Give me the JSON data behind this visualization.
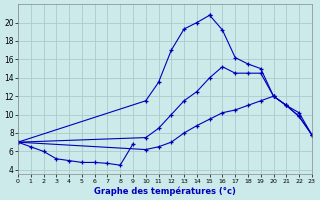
{
  "title": "Graphe des températures (°c)",
  "bg": "#cceaea",
  "grid_color": "#aacccc",
  "lc": "#0000bb",
  "xlim": [
    0,
    23
  ],
  "ylim": [
    3.5,
    22
  ],
  "yticks": [
    4,
    6,
    8,
    10,
    12,
    14,
    16,
    18,
    20
  ],
  "xticks": [
    0,
    1,
    2,
    3,
    4,
    5,
    6,
    7,
    8,
    9,
    10,
    11,
    12,
    13,
    14,
    15,
    16,
    17,
    18,
    19,
    20,
    21,
    22,
    23
  ],
  "line1_x": [
    0,
    1,
    2,
    3,
    4,
    5,
    6,
    7,
    8,
    9
  ],
  "line1_y": [
    7.0,
    6.5,
    6.0,
    5.2,
    5.0,
    4.8,
    4.8,
    4.7,
    4.5,
    6.8
  ],
  "line2_x": [
    0,
    10,
    11,
    12,
    13,
    14,
    15,
    16,
    17,
    18,
    19,
    20,
    21,
    22,
    23
  ],
  "line2_y": [
    7.0,
    6.2,
    6.5,
    7.0,
    8.0,
    8.8,
    9.5,
    10.2,
    10.5,
    11.0,
    11.5,
    12.0,
    11.0,
    10.2,
    7.8
  ],
  "line3_x": [
    0,
    10,
    11,
    12,
    13,
    14,
    15,
    16,
    17,
    18,
    19,
    20,
    21,
    22,
    23
  ],
  "line3_y": [
    7.0,
    7.5,
    8.5,
    10.0,
    11.5,
    12.5,
    14.0,
    15.2,
    14.5,
    14.5,
    14.5,
    12.0,
    11.0,
    9.8,
    7.8
  ],
  "line4_x": [
    0,
    10,
    11,
    12,
    13,
    14,
    15
  ],
  "line4_y": [
    7.0,
    11.5,
    13.5,
    17.0,
    19.3,
    20.0,
    20.8
  ],
  "line5_x": [
    15,
    16,
    17,
    18,
    19,
    20,
    21,
    22,
    23
  ],
  "line5_y": [
    20.8,
    19.2,
    16.2,
    15.5,
    15.0,
    12.0,
    11.0,
    9.8,
    7.8
  ]
}
